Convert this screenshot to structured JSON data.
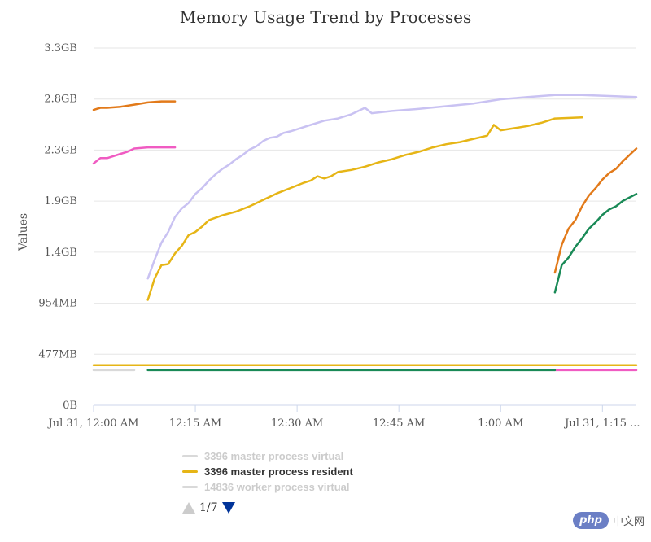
{
  "chart_data": {
    "type": "line",
    "title": "Memory Usage Trend by Processes",
    "ylabel": "Values",
    "xlabel": "",
    "y_ticks": [
      {
        "value": 0,
        "label": "0B"
      },
      {
        "value": 477,
        "label": "477MB"
      },
      {
        "value": 954,
        "label": "954MB"
      },
      {
        "value": 1431,
        "label": "1.4GB"
      },
      {
        "value": 1908,
        "label": "1.9GB"
      },
      {
        "value": 2385,
        "label": "2.3GB"
      },
      {
        "value": 2862,
        "label": "2.8GB"
      },
      {
        "value": 3339,
        "label": "3.3GB"
      }
    ],
    "ylim": [
      0,
      3339
    ],
    "x_unit": "minutes",
    "x_ticks": [
      {
        "value": 0,
        "label": "Jul 31, 12:00 AM"
      },
      {
        "value": 15,
        "label": "12:15 AM"
      },
      {
        "value": 30,
        "label": "12:30 AM"
      },
      {
        "value": 45,
        "label": "12:45 AM"
      },
      {
        "value": 60,
        "label": "1:00 AM"
      },
      {
        "value": 75,
        "label": "Jul 31, 1:15 ..."
      }
    ],
    "xlim": [
      0,
      80
    ],
    "grid": true,
    "legend_placement": "bottom",
    "series": [
      {
        "name": "3396 master process virtual",
        "color": "#d9d9d9",
        "hidden": true,
        "points": []
      },
      {
        "name": "3396 master process resident",
        "color": "#e6b516",
        "hidden": false,
        "points": [
          [
            0,
            375
          ],
          [
            80,
            375
          ]
        ]
      },
      {
        "name": "14836 worker process virtual",
        "color": "#d9d9d9",
        "hidden": true,
        "points": []
      },
      {
        "name": "",
        "color": "#c9c2f2",
        "hidden": false,
        "points": [
          [
            8,
            1185
          ],
          [
            9,
            1360
          ],
          [
            10,
            1520
          ],
          [
            11,
            1620
          ],
          [
            12,
            1760
          ],
          [
            13,
            1840
          ],
          [
            14,
            1890
          ],
          [
            15,
            1975
          ],
          [
            16,
            2030
          ],
          [
            17,
            2100
          ],
          [
            18,
            2160
          ],
          [
            19,
            2210
          ],
          [
            20,
            2250
          ],
          [
            21,
            2300
          ],
          [
            22,
            2340
          ],
          [
            23,
            2390
          ],
          [
            24,
            2420
          ],
          [
            25,
            2470
          ],
          [
            26,
            2500
          ],
          [
            27,
            2510
          ],
          [
            28,
            2545
          ],
          [
            29,
            2560
          ],
          [
            30,
            2580
          ],
          [
            32,
            2620
          ],
          [
            34,
            2660
          ],
          [
            36,
            2680
          ],
          [
            38,
            2720
          ],
          [
            40,
            2780
          ],
          [
            41,
            2730
          ],
          [
            44,
            2750
          ],
          [
            48,
            2770
          ],
          [
            52,
            2795
          ],
          [
            56,
            2820
          ],
          [
            60,
            2860
          ],
          [
            64,
            2880
          ],
          [
            68,
            2900
          ],
          [
            72,
            2900
          ],
          [
            80,
            2880
          ]
        ]
      },
      {
        "name": "",
        "color": "#e6b516",
        "hidden": false,
        "points": [
          [
            8,
            985
          ],
          [
            9,
            1185
          ],
          [
            10,
            1310
          ],
          [
            11,
            1320
          ],
          [
            12,
            1420
          ],
          [
            13,
            1490
          ],
          [
            14,
            1590
          ],
          [
            15,
            1620
          ],
          [
            16,
            1670
          ],
          [
            17,
            1730
          ],
          [
            19,
            1775
          ],
          [
            21,
            1810
          ],
          [
            23,
            1860
          ],
          [
            25,
            1920
          ],
          [
            27,
            1980
          ],
          [
            29,
            2030
          ],
          [
            31,
            2080
          ],
          [
            32,
            2100
          ],
          [
            33,
            2140
          ],
          [
            34,
            2120
          ],
          [
            35,
            2140
          ],
          [
            36,
            2180
          ],
          [
            38,
            2200
          ],
          [
            40,
            2230
          ],
          [
            42,
            2270
          ],
          [
            44,
            2300
          ],
          [
            46,
            2340
          ],
          [
            48,
            2370
          ],
          [
            50,
            2410
          ],
          [
            52,
            2440
          ],
          [
            54,
            2460
          ],
          [
            56,
            2490
          ],
          [
            58,
            2520
          ],
          [
            59,
            2620
          ],
          [
            60,
            2570
          ],
          [
            62,
            2590
          ],
          [
            64,
            2610
          ],
          [
            66,
            2640
          ],
          [
            68,
            2680
          ],
          [
            72,
            2690
          ]
        ]
      },
      {
        "name": "",
        "color": "#e27a1a",
        "hidden": false,
        "points": [
          [
            0,
            2760
          ],
          [
            1,
            2780
          ],
          [
            2,
            2780
          ],
          [
            4,
            2790
          ],
          [
            6,
            2810
          ],
          [
            8,
            2830
          ],
          [
            10,
            2840
          ],
          [
            12,
            2840
          ]
        ]
      },
      {
        "name": "",
        "color": "#e27a1a",
        "hidden": false,
        "points": [
          [
            68,
            1240
          ],
          [
            69,
            1500
          ],
          [
            70,
            1650
          ],
          [
            71,
            1730
          ],
          [
            72,
            1860
          ],
          [
            73,
            1960
          ],
          [
            74,
            2030
          ],
          [
            75,
            2110
          ],
          [
            76,
            2170
          ],
          [
            77,
            2210
          ],
          [
            78,
            2280
          ],
          [
            80,
            2400
          ]
        ]
      },
      {
        "name": "",
        "color": "#f05bc2",
        "hidden": false,
        "points": [
          [
            0,
            2260
          ],
          [
            1,
            2310
          ],
          [
            2,
            2310
          ],
          [
            3,
            2330
          ],
          [
            4,
            2350
          ],
          [
            5,
            2370
          ],
          [
            6,
            2400
          ],
          [
            8,
            2410
          ],
          [
            12,
            2410
          ]
        ]
      },
      {
        "name": "",
        "color": "#f05bc2",
        "hidden": false,
        "points": [
          [
            68,
            328
          ],
          [
            80,
            328
          ]
        ]
      },
      {
        "name": "",
        "color": "#1a8a57",
        "hidden": false,
        "points": [
          [
            8,
            328
          ],
          [
            68,
            328
          ]
        ]
      },
      {
        "name": "",
        "color": "#1a8a57",
        "hidden": false,
        "points": [
          [
            68,
            1055
          ],
          [
            69,
            1310
          ],
          [
            70,
            1380
          ],
          [
            71,
            1480
          ],
          [
            72,
            1560
          ],
          [
            73,
            1650
          ],
          [
            74,
            1710
          ],
          [
            75,
            1780
          ],
          [
            76,
            1830
          ],
          [
            77,
            1860
          ],
          [
            78,
            1910
          ],
          [
            80,
            1975
          ]
        ]
      },
      {
        "name": "",
        "color": "#d9d9d9",
        "hidden": false,
        "points": [
          [
            0,
            328
          ],
          [
            6,
            328
          ]
        ]
      }
    ]
  },
  "legend_items": [
    {
      "label": "3396 master process virtual",
      "color": "#d9d9d9",
      "text_color": "#cccccc"
    },
    {
      "label": "3396 master process resident",
      "color": "#e6b516",
      "text_color": "#333333"
    },
    {
      "label": "14836 worker process virtual",
      "color": "#d9d9d9",
      "text_color": "#cccccc"
    }
  ],
  "pager": {
    "text": "1/7"
  },
  "watermark": {
    "badge": "php",
    "text": "中文网"
  }
}
